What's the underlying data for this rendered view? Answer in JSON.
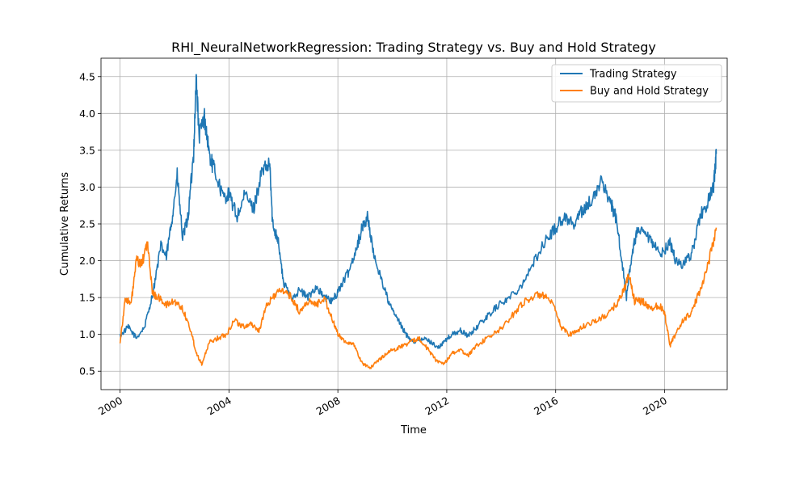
{
  "chart_data": {
    "type": "line",
    "title": "RHI_NeuralNetworkRegression: Trading Strategy vs. Buy and Hold Strategy",
    "xlabel": "Time",
    "ylabel": "Cumulative Returns",
    "xlim": [
      1999.3,
      2022.3
    ],
    "ylim": [
      0.25,
      4.75
    ],
    "xticks": [
      2000,
      2004,
      2008,
      2012,
      2016,
      2020
    ],
    "xtick_labels": [
      "2000",
      "2004",
      "2008",
      "2012",
      "2016",
      "2020"
    ],
    "yticks": [
      0.5,
      1.0,
      1.5,
      2.0,
      2.5,
      3.0,
      3.5,
      4.0,
      4.5
    ],
    "ytick_labels": [
      "0.5",
      "1.0",
      "1.5",
      "2.0",
      "2.5",
      "3.0",
      "3.5",
      "4.0",
      "4.5"
    ],
    "grid": true,
    "legend_position": "top-right",
    "series": [
      {
        "name": "Trading Strategy",
        "color": "#1f77b4",
        "x": [
          2000.0,
          2000.3,
          2000.6,
          2000.9,
          2001.2,
          2001.5,
          2001.7,
          2001.9,
          2002.1,
          2002.3,
          2002.5,
          2002.7,
          2002.8,
          2002.9,
          2003.1,
          2003.3,
          2003.5,
          2003.8,
          2004.0,
          2004.3,
          2004.6,
          2004.9,
          2005.2,
          2005.5,
          2005.6,
          2005.8,
          2006.0,
          2006.3,
          2006.6,
          2006.9,
          2007.2,
          2007.5,
          2007.8,
          2008.1,
          2008.4,
          2008.7,
          2008.9,
          2009.1,
          2009.3,
          2009.6,
          2009.9,
          2010.2,
          2010.5,
          2010.8,
          2011.1,
          2011.4,
          2011.7,
          2011.9,
          2012.2,
          2012.5,
          2012.8,
          2013.1,
          2013.5,
          2013.9,
          2014.3,
          2014.7,
          2015.1,
          2015.5,
          2015.9,
          2016.3,
          2016.7,
          2017.0,
          2017.4,
          2017.7,
          2018.0,
          2018.2,
          2018.4,
          2018.6,
          2018.8,
          2019.0,
          2019.3,
          2019.6,
          2019.9,
          2020.2,
          2020.4,
          2020.7,
          2021.0,
          2021.3,
          2021.6,
          2021.8,
          2021.9
        ],
        "y": [
          0.98,
          1.1,
          0.95,
          1.1,
          1.55,
          2.2,
          2.05,
          2.55,
          3.15,
          2.3,
          2.6,
          3.45,
          4.5,
          3.7,
          3.95,
          3.4,
          3.2,
          2.85,
          2.9,
          2.6,
          2.9,
          2.7,
          3.2,
          3.3,
          2.5,
          2.3,
          1.7,
          1.5,
          1.6,
          1.5,
          1.65,
          1.5,
          1.45,
          1.65,
          1.85,
          2.2,
          2.45,
          2.6,
          2.1,
          1.75,
          1.4,
          1.2,
          1.0,
          0.9,
          0.95,
          0.9,
          0.82,
          0.9,
          1.0,
          1.05,
          0.98,
          1.1,
          1.25,
          1.4,
          1.5,
          1.65,
          1.9,
          2.2,
          2.4,
          2.6,
          2.5,
          2.7,
          2.85,
          3.1,
          2.8,
          2.6,
          2.1,
          1.5,
          2.1,
          2.4,
          2.35,
          2.2,
          2.1,
          2.25,
          2.0,
          1.95,
          2.1,
          2.6,
          2.8,
          3.0,
          3.45
        ]
      },
      {
        "name": "Buy and Hold Strategy",
        "color": "#ff7f0e",
        "x": [
          2000.0,
          2000.2,
          2000.4,
          2000.6,
          2000.8,
          2001.0,
          2001.2,
          2001.4,
          2001.7,
          2002.0,
          2002.3,
          2002.6,
          2002.8,
          2003.0,
          2003.3,
          2003.6,
          2003.9,
          2004.2,
          2004.5,
          2004.8,
          2005.1,
          2005.4,
          2005.7,
          2006.0,
          2006.3,
          2006.6,
          2006.9,
          2007.2,
          2007.5,
          2007.8,
          2008.0,
          2008.3,
          2008.6,
          2008.9,
          2009.2,
          2009.5,
          2009.8,
          2010.1,
          2010.4,
          2010.7,
          2011.0,
          2011.3,
          2011.6,
          2011.9,
          2012.2,
          2012.5,
          2012.8,
          2013.1,
          2013.5,
          2013.9,
          2014.3,
          2014.7,
          2015.1,
          2015.5,
          2015.9,
          2016.2,
          2016.5,
          2016.8,
          2017.2,
          2017.6,
          2018.0,
          2018.3,
          2018.5,
          2018.7,
          2018.9,
          2019.2,
          2019.5,
          2019.8,
          2020.0,
          2020.2,
          2020.4,
          2020.7,
          2021.0,
          2021.3,
          2021.6,
          2021.9
        ],
        "y": [
          0.9,
          1.5,
          1.4,
          2.0,
          1.95,
          2.25,
          1.55,
          1.5,
          1.4,
          1.45,
          1.35,
          1.05,
          0.75,
          0.6,
          0.9,
          0.95,
          1.0,
          1.2,
          1.1,
          1.15,
          1.05,
          1.4,
          1.55,
          1.6,
          1.5,
          1.3,
          1.45,
          1.4,
          1.5,
          1.2,
          1.0,
          0.9,
          0.85,
          0.6,
          0.55,
          0.65,
          0.75,
          0.8,
          0.85,
          0.9,
          0.95,
          0.8,
          0.65,
          0.6,
          0.75,
          0.78,
          0.72,
          0.85,
          0.95,
          1.05,
          1.2,
          1.4,
          1.5,
          1.55,
          1.4,
          1.1,
          1.0,
          1.05,
          1.15,
          1.2,
          1.3,
          1.45,
          1.6,
          1.8,
          1.45,
          1.45,
          1.35,
          1.4,
          1.3,
          0.85,
          1.0,
          1.2,
          1.3,
          1.6,
          1.95,
          2.45
        ]
      }
    ]
  }
}
